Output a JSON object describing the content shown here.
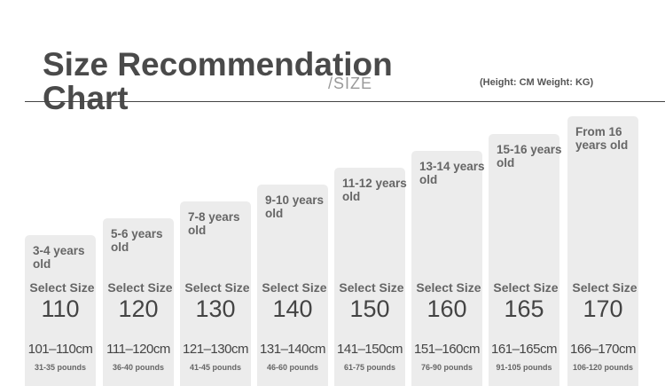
{
  "header": {
    "title": "Size Recommendation Chart",
    "faint_text": "/SIZE",
    "subtitle": "(Height: CM Weight: KG)"
  },
  "sizes": [
    {
      "age": "3-4 years old",
      "select": "Select Size",
      "size": "110",
      "height": "101–110cm",
      "weight": "31-35 pounds"
    },
    {
      "age": "5-6 years old",
      "select": "Select Size",
      "size": "120",
      "height": "111–120cm",
      "weight": "36-40 pounds"
    },
    {
      "age": "7-8 years old",
      "select": "Select Size",
      "size": "130",
      "height": "121–130cm",
      "weight": "41-45 pounds"
    },
    {
      "age": "9-10 years old",
      "select": "Select Size",
      "size": "140",
      "height": "131–140cm",
      "weight": "46-60 pounds"
    },
    {
      "age": "11-12 years old",
      "select": "Select Size",
      "size": "150",
      "height": "141–150cm",
      "weight": "61-75 pounds"
    },
    {
      "age": "13-14 years old",
      "select": "Select Size",
      "size": "160",
      "height": "151–160cm",
      "weight": "76-90 pounds"
    },
    {
      "age": "15-16 years old",
      "select": "Select Size",
      "size": "165",
      "height": "161–165cm",
      "weight": "91-105 pounds"
    },
    {
      "age": "From 16 years old",
      "select": "Select Size",
      "size": "170",
      "height": "166–170cm",
      "weight": "106-120 pounds"
    }
  ]
}
